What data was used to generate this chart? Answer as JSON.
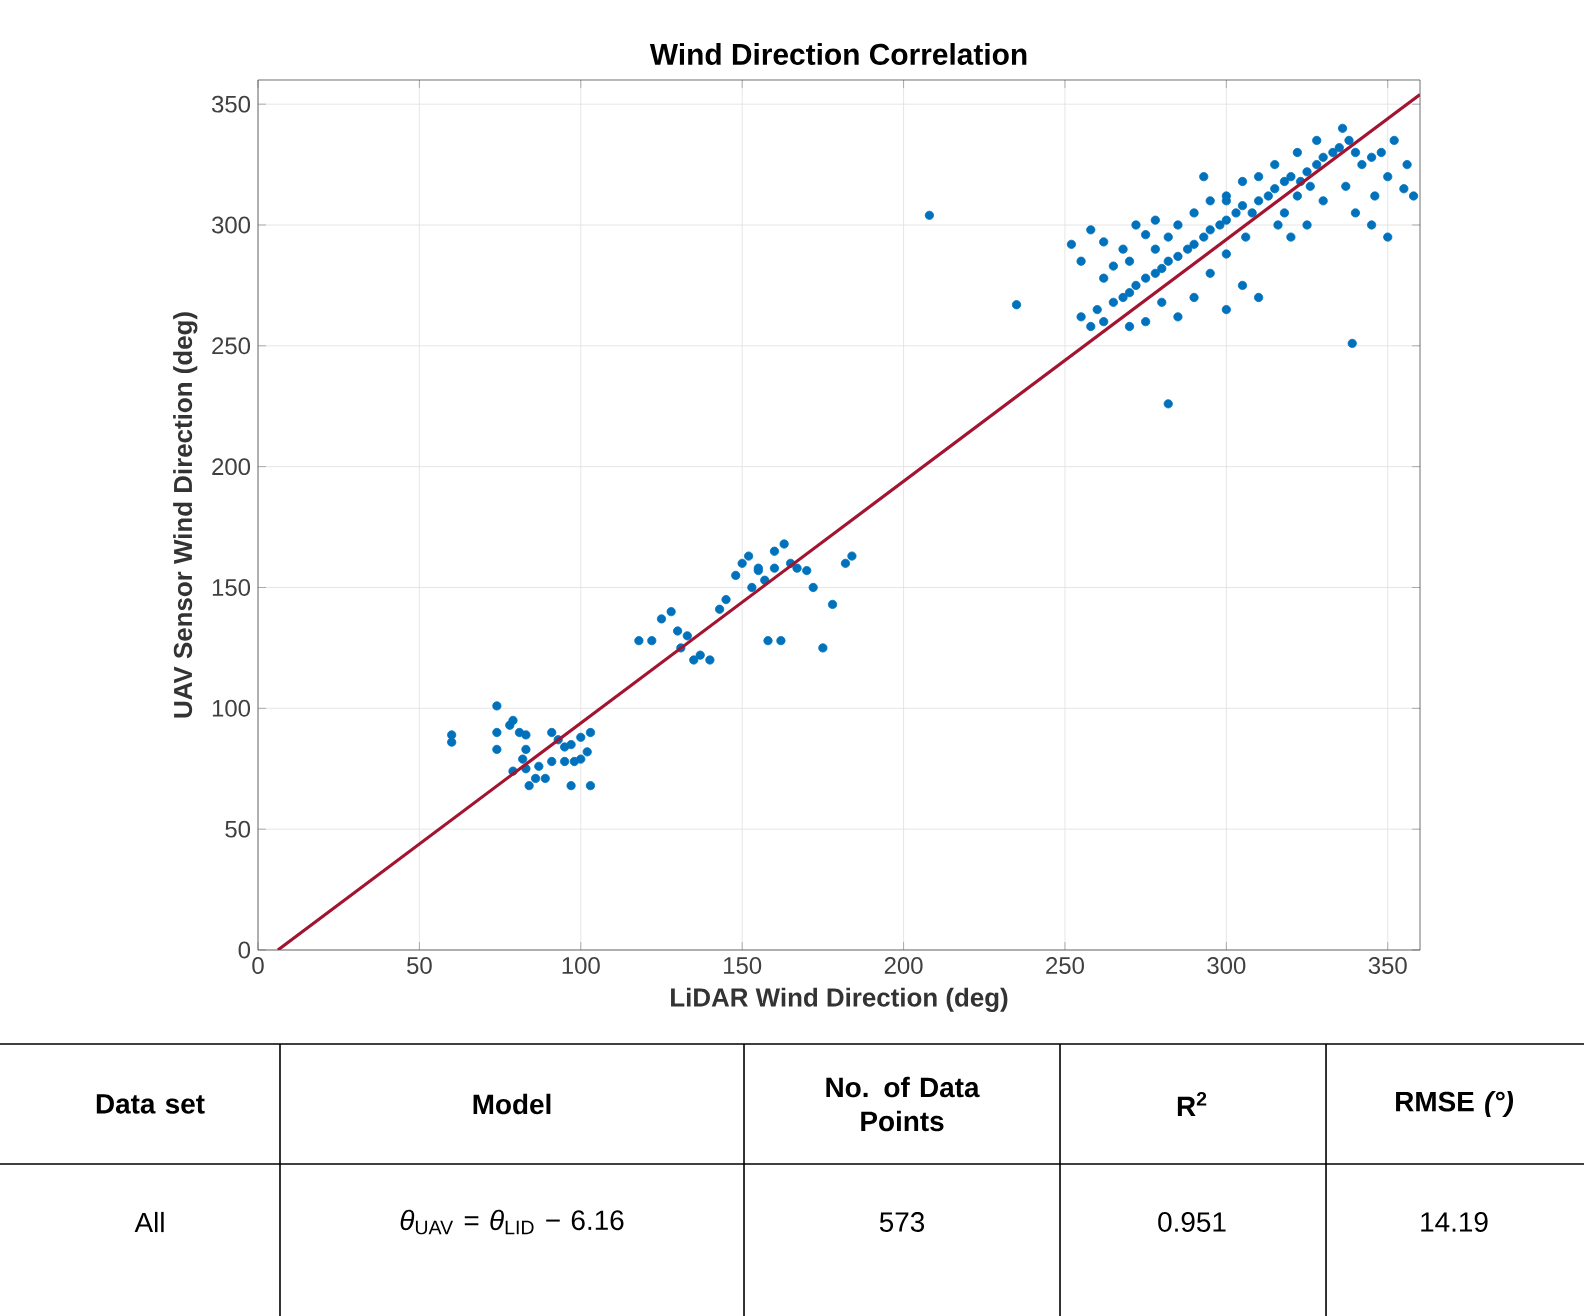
{
  "chart_data": {
    "type": "scatter",
    "title": "Wind Direction Correlation",
    "xlabel": "LiDAR Wind Direction (deg)",
    "ylabel": "UAV Sensor Wind Direction (deg)",
    "xlim": [
      0,
      360
    ],
    "ylim": [
      0,
      360
    ],
    "xticks": [
      0,
      50,
      100,
      150,
      200,
      250,
      300,
      350
    ],
    "yticks": [
      0,
      50,
      100,
      150,
      200,
      250,
      300,
      350
    ],
    "grid": true,
    "marker": "circle",
    "series": [
      {
        "color": "#0072bd",
        "x": [
          60,
          60,
          74,
          74,
          74,
          78,
          79,
          81,
          83,
          83,
          82,
          79,
          83,
          86,
          84,
          89,
          91,
          93,
          95,
          97,
          91,
          95,
          98,
          100,
          97,
          103,
          100,
          103,
          102,
          87,
          118,
          122,
          125,
          128,
          130,
          131,
          133,
          135,
          137,
          140,
          143,
          145,
          148,
          150,
          152,
          153,
          155,
          157,
          158,
          160,
          162,
          160,
          163,
          165,
          167,
          170,
          172,
          175,
          178,
          182,
          184,
          155,
          208,
          235,
          282,
          339,
          255,
          258,
          260,
          262,
          265,
          268,
          270,
          272,
          275,
          278,
          280,
          282,
          285,
          288,
          290,
          293,
          295,
          298,
          300,
          303,
          305,
          308,
          310,
          313,
          315,
          318,
          320,
          323,
          325,
          328,
          330,
          333,
          335,
          338,
          340,
          342,
          345,
          348,
          350,
          355,
          358,
          352,
          336,
          330,
          325,
          320,
          340,
          345,
          350,
          310,
          305,
          300,
          285,
          280,
          275,
          270,
          265,
          255,
          252,
          258,
          262,
          268,
          272,
          278,
          285,
          290,
          295,
          300,
          310,
          315,
          322,
          328,
          290,
          295,
          300,
          282,
          278,
          270,
          262,
          306,
          316,
          326,
          337,
          346,
          356,
          300,
          293,
          305,
          318,
          322,
          275
        ],
        "values": [
          89,
          86,
          101,
          90,
          83,
          93,
          95,
          90,
          89,
          83,
          79,
          74,
          75,
          71,
          68,
          71,
          90,
          87,
          84,
          85,
          78,
          78,
          78,
          79,
          68,
          68,
          88,
          90,
          82,
          76,
          128,
          128,
          137,
          140,
          132,
          125,
          130,
          120,
          122,
          120,
          141,
          145,
          155,
          160,
          163,
          150,
          157,
          153,
          128,
          158,
          128,
          165,
          168,
          160,
          158,
          157,
          150,
          125,
          143,
          160,
          163,
          158,
          304,
          267,
          226,
          251,
          262,
          258,
          265,
          260,
          268,
          270,
          272,
          275,
          278,
          280,
          282,
          285,
          287,
          290,
          292,
          295,
          298,
          300,
          302,
          305,
          308,
          305,
          310,
          312,
          315,
          318,
          320,
          318,
          322,
          325,
          328,
          330,
          332,
          335,
          330,
          325,
          328,
          330,
          320,
          315,
          312,
          335,
          340,
          310,
          300,
          295,
          305,
          300,
          295,
          270,
          275,
          265,
          262,
          268,
          260,
          258,
          283,
          285,
          292,
          298,
          293,
          290,
          300,
          302,
          300,
          305,
          310,
          312,
          320,
          325,
          330,
          335,
          270,
          280,
          288,
          295,
          290,
          285,
          278,
          295,
          300,
          316,
          316,
          312,
          325,
          310,
          320,
          318,
          305,
          312,
          296
        ]
      },
      {
        "type": "line",
        "color": "#a2142f",
        "marker": "none",
        "x": [
          6.16,
          360
        ],
        "values": [
          0,
          354
        ]
      }
    ],
    "annotations": [
      "Data set",
      "Model",
      "No. of Data Points",
      "R$^{2}$",
      "RMSE *(°)*",
      "All",
      "*θ*$_{UAV}$ = *θ*$_{LID}$ − 6.16",
      "573",
      "0.951",
      "14.19"
    ]
  }
}
